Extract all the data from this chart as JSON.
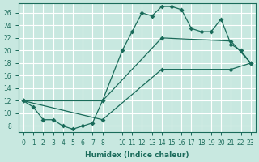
{
  "xlabel": "Humidex (Indice chaleur)",
  "background_color": "#c8e8e0",
  "grid_color": "#ffffff",
  "line_color": "#1a6b5a",
  "xlim": [
    -0.5,
    23.5
  ],
  "ylim": [
    7,
    27.5
  ],
  "line1_x": [
    0,
    1,
    2,
    3,
    4,
    5,
    6,
    7,
    8,
    10,
    11,
    12,
    13,
    14,
    15,
    16,
    17,
    18,
    19,
    20,
    21,
    22,
    23
  ],
  "line1_y": [
    12,
    11,
    9,
    9,
    8,
    7.5,
    8,
    8.5,
    12,
    20,
    23,
    26,
    25.5,
    27,
    27,
    26.5,
    23.5,
    23,
    23,
    25,
    21,
    20,
    18
  ],
  "line2_x": [
    0,
    8,
    14,
    21,
    23
  ],
  "line2_y": [
    12,
    12,
    22,
    21.5,
    18
  ],
  "line3_x": [
    0,
    8,
    14,
    21,
    23
  ],
  "line3_y": [
    12,
    9,
    17,
    17,
    18
  ],
  "xticks": [
    0,
    1,
    2,
    3,
    4,
    5,
    6,
    7,
    8,
    10,
    11,
    12,
    13,
    14,
    15,
    16,
    17,
    18,
    19,
    20,
    21,
    22,
    23
  ],
  "yticks": [
    8,
    10,
    12,
    14,
    16,
    18,
    20,
    22,
    24,
    26
  ],
  "markersize": 3
}
